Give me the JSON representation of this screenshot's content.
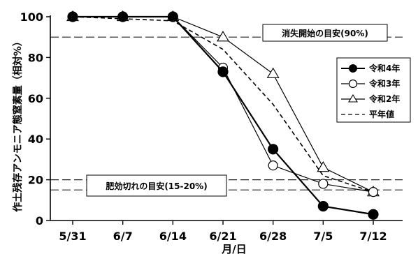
{
  "chart_data": {
    "type": "line",
    "title": "",
    "xlabel": "月/日",
    "ylabel": "作土残存アンモニア態窒素量（相対%）",
    "categories": [
      "5/31",
      "6/7",
      "6/14",
      "6/21",
      "6/28",
      "7/5",
      "7/12"
    ],
    "x_day_offsets": [
      0,
      7,
      14,
      21,
      28,
      35,
      42
    ],
    "ylim": [
      0,
      100
    ],
    "yticks": [
      0,
      20,
      40,
      60,
      80,
      100
    ],
    "xlim_days": [
      0,
      42
    ],
    "grid": false,
    "legend_position": "right",
    "series": [
      {
        "name": "令和4年",
        "marker": "filled-circle",
        "line": "solid",
        "points": [
          [
            0,
            100
          ],
          [
            7,
            100
          ],
          [
            14,
            100
          ],
          [
            21,
            73
          ],
          [
            28,
            35
          ],
          [
            35,
            7
          ],
          [
            42,
            3
          ]
        ]
      },
      {
        "name": "令和3年",
        "marker": "open-circle",
        "line": "solid",
        "points": [
          [
            0,
            100
          ],
          [
            7,
            100
          ],
          [
            14,
            100
          ],
          [
            21,
            75
          ],
          [
            28,
            27
          ],
          [
            35,
            18
          ],
          [
            42,
            14
          ]
        ]
      },
      {
        "name": "令和2年",
        "marker": "open-triangle",
        "line": "solid",
        "points": [
          [
            0,
            100
          ],
          [
            7,
            100
          ],
          [
            14,
            100
          ],
          [
            21,
            90
          ],
          [
            28,
            72
          ],
          [
            35,
            26
          ],
          [
            42,
            14
          ]
        ]
      },
      {
        "name": "平年値",
        "marker": "none",
        "line": "dashed",
        "points": [
          [
            0,
            100
          ],
          [
            14,
            98
          ],
          [
            21,
            84
          ],
          [
            28,
            57
          ],
          [
            35,
            22
          ],
          [
            42,
            14
          ]
        ]
      }
    ],
    "reference_lines": [
      90,
      20,
      15
    ],
    "annotations": [
      {
        "text": "消失開始の目安(90%)",
        "near_y": 90
      },
      {
        "text": "肥効切れの目安(15-20%)",
        "near_y": 17.5
      }
    ]
  }
}
